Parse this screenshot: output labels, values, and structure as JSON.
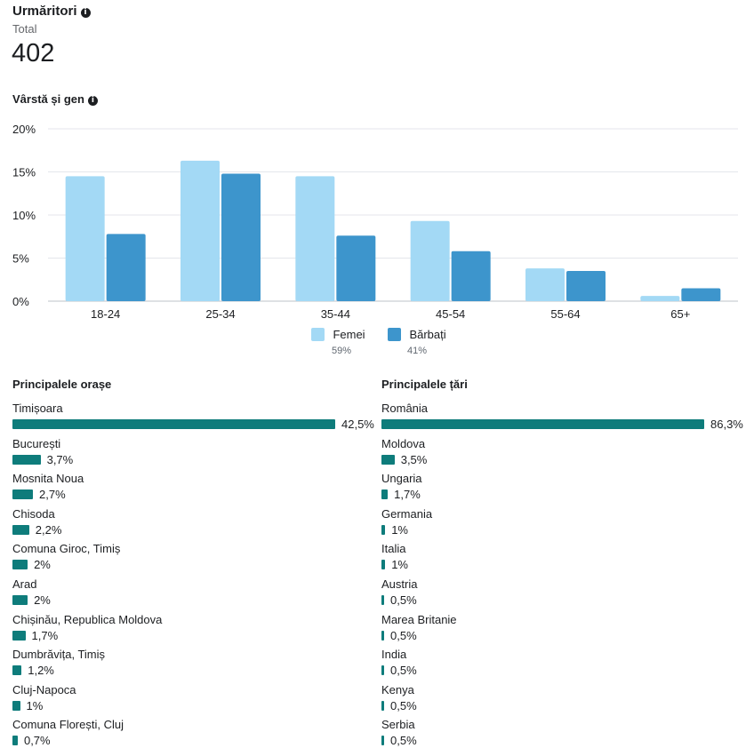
{
  "header": {
    "title": "Urmăritori",
    "total_label": "Total",
    "total_value": "402"
  },
  "age_gender": {
    "title": "Vârstă și gen"
  },
  "colors": {
    "female": "#a3d9f5",
    "male": "#3d95cc",
    "bar": "#0e7c7b"
  },
  "chart_data": {
    "type": "bar",
    "title": "Vârstă și gen",
    "categories": [
      "18-24",
      "25-34",
      "35-44",
      "45-54",
      "55-64",
      "65+"
    ],
    "series": [
      {
        "name": "Femei",
        "share": "59%",
        "values": [
          14.5,
          16.3,
          14.5,
          9.3,
          3.8,
          0.6
        ]
      },
      {
        "name": "Bărbați",
        "share": "41%",
        "values": [
          7.8,
          14.8,
          7.6,
          5.8,
          3.5,
          1.5
        ]
      }
    ],
    "y_ticks": [
      "0%",
      "5%",
      "10%",
      "15%",
      "20%"
    ],
    "ylim": [
      0,
      20
    ],
    "grid": true,
    "legend": "bottom-center",
    "xlabel": "",
    "ylabel": ""
  },
  "cities": {
    "title": "Principalele orașe",
    "items": [
      {
        "label": "Timișoara",
        "value": "42,5%",
        "pct": 42.5
      },
      {
        "label": "București",
        "value": "3,7%",
        "pct": 3.7
      },
      {
        "label": "Mosnita Noua",
        "value": "2,7%",
        "pct": 2.7
      },
      {
        "label": "Chisoda",
        "value": "2,2%",
        "pct": 2.2
      },
      {
        "label": "Comuna Giroc, Timiș",
        "value": "2%",
        "pct": 2.0
      },
      {
        "label": "Arad",
        "value": "2%",
        "pct": 2.0
      },
      {
        "label": "Chișinău, Republica Moldova",
        "value": "1,7%",
        "pct": 1.7
      },
      {
        "label": "Dumbrăvița, Timiș",
        "value": "1,2%",
        "pct": 1.2
      },
      {
        "label": "Cluj-Napoca",
        "value": "1%",
        "pct": 1.0
      },
      {
        "label": "Comuna Florești, Cluj",
        "value": "0,7%",
        "pct": 0.7
      }
    ]
  },
  "countries": {
    "title": "Principalele țări",
    "items": [
      {
        "label": "România",
        "value": "86,3%",
        "pct": 86.3
      },
      {
        "label": "Moldova",
        "value": "3,5%",
        "pct": 3.5
      },
      {
        "label": "Ungaria",
        "value": "1,7%",
        "pct": 1.7
      },
      {
        "label": "Germania",
        "value": "1%",
        "pct": 1.0
      },
      {
        "label": "Italia",
        "value": "1%",
        "pct": 1.0
      },
      {
        "label": "Austria",
        "value": "0,5%",
        "pct": 0.5
      },
      {
        "label": "Marea Britanie",
        "value": "0,5%",
        "pct": 0.5
      },
      {
        "label": "India",
        "value": "0,5%",
        "pct": 0.5
      },
      {
        "label": "Kenya",
        "value": "0,5%",
        "pct": 0.5
      },
      {
        "label": "Serbia",
        "value": "0,5%",
        "pct": 0.5
      }
    ]
  }
}
